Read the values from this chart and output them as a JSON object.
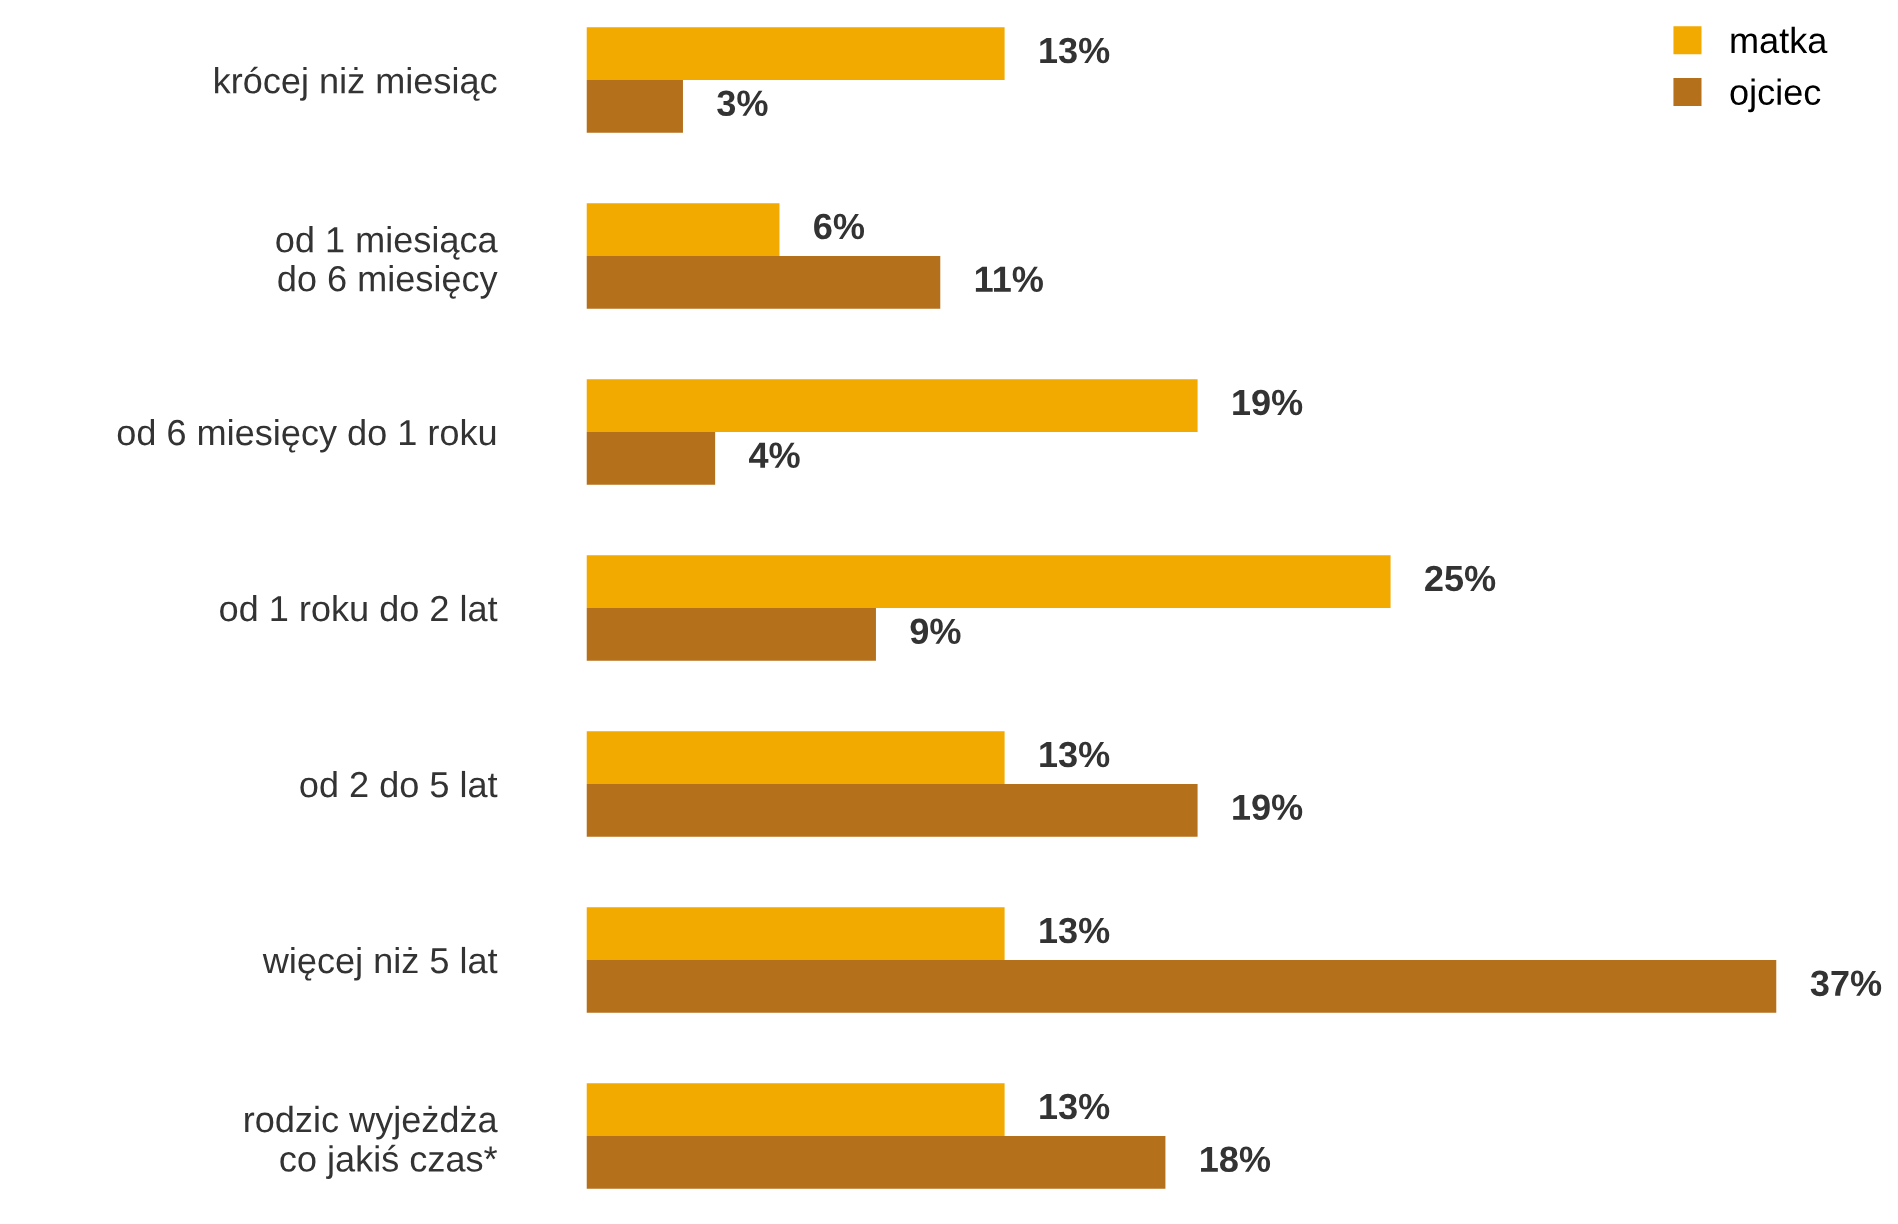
{
  "chart_data": {
    "type": "bar",
    "orientation": "horizontal",
    "categories": [
      "krócej niż miesiąc",
      "od 1 miesiąca\ndo 6 miesięcy",
      "od 6 miesięcy do 1 roku",
      "od 1 roku do 2 lat",
      "od 2 do 5 lat",
      "więcej niż 5 lat",
      "rodzic wyjeżdża\nco jakiś czas*"
    ],
    "series": [
      {
        "name": "matka",
        "color": "#f2a900",
        "values": [
          13,
          6,
          19,
          25,
          13,
          13,
          13
        ],
        "value_labels": [
          "13%",
          "6%",
          "19%",
          "25%",
          "13%",
          "13%",
          "13%"
        ]
      },
      {
        "name": "ojciec",
        "color": "#b5701c",
        "values": [
          3,
          11,
          4,
          9,
          19,
          37,
          18
        ],
        "value_labels": [
          "3%",
          "11%",
          "4%",
          "9%",
          "19%",
          "37%",
          "18%"
        ]
      }
    ],
    "legend": "top right",
    "grid": false
  }
}
